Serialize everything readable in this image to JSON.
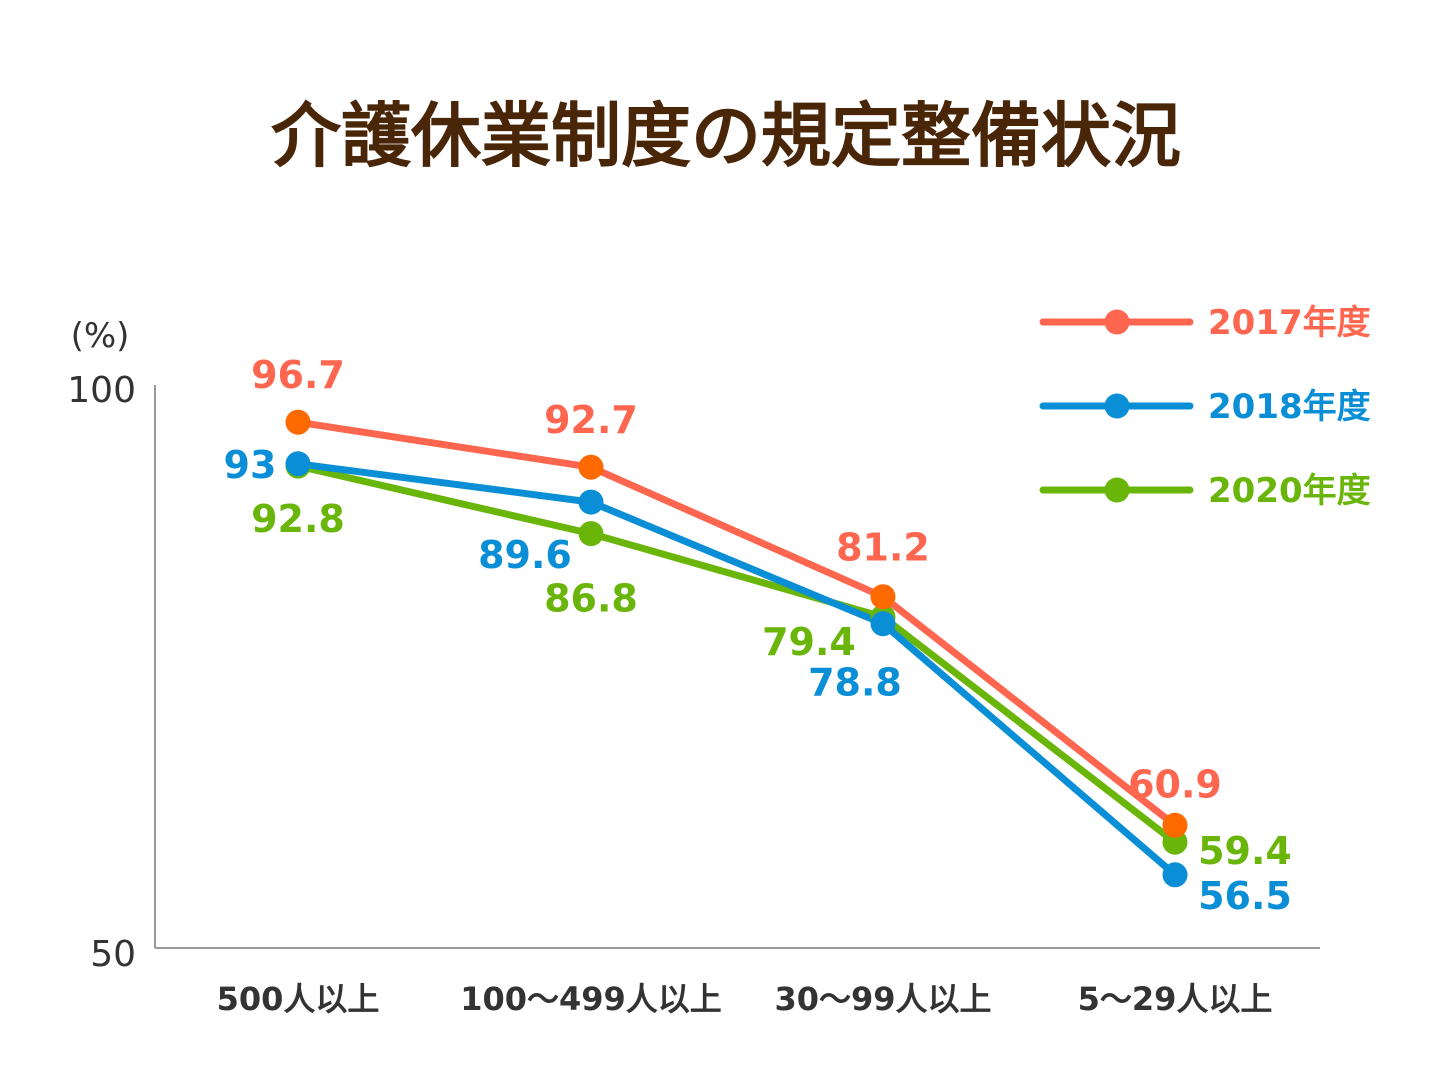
{
  "chart_data": {
    "type": "line",
    "title": "介護休業制度の規定整備状況",
    "ylabel": "(%)",
    "ylim": [
      50,
      100
    ],
    "yticks": [
      "100",
      "50"
    ],
    "categories": [
      "500人以上",
      "100〜499人以上",
      "30〜99人以上",
      "5〜29人以上"
    ],
    "series": [
      {
        "name": "2017年度",
        "color": "#ff6650",
        "marker_color": "#ff6a00",
        "values": [
          96.7,
          92.7,
          81.2,
          60.9
        ],
        "labels": [
          "96.7",
          "92.7",
          "81.2",
          "60.9"
        ]
      },
      {
        "name": "2018年度",
        "color": "#0a8fd6",
        "marker_color": "#0a8fd6",
        "values": [
          93,
          89.6,
          78.8,
          56.5
        ],
        "labels": [
          "93",
          "89.6",
          "78.8",
          "56.5"
        ]
      },
      {
        "name": "2020年度",
        "color": "#6ab50a",
        "marker_color": "#6ab50a",
        "values": [
          92.8,
          86.8,
          79.4,
          59.4
        ],
        "labels": [
          "92.8",
          "86.8",
          "79.4",
          "59.4"
        ]
      }
    ],
    "legend_position": "top-right",
    "grid": false
  }
}
